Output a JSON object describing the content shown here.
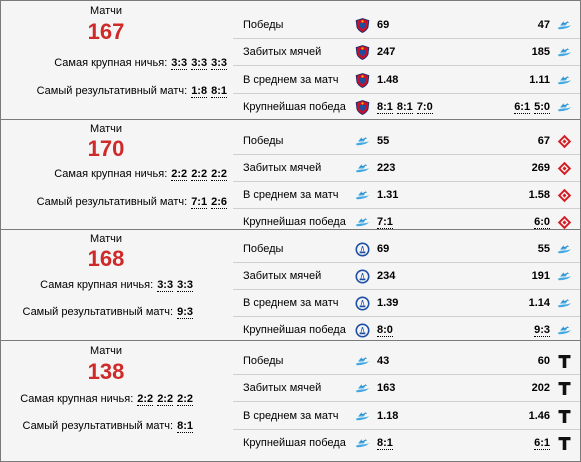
{
  "labels": {
    "matches": "Матчи",
    "biggest_draw": "Самая крупная ничья:",
    "most_productive": "Самый результативный матч:",
    "wins": "Победы",
    "goals": "Забитых мячей",
    "avg": "В среднем за матч",
    "biggest_win": "Крупнейшая победа"
  },
  "blocks": [
    {
      "matches": "167",
      "draws": [
        "3:3",
        "3:3",
        "3:3"
      ],
      "productive": [
        "1:8",
        "8:1"
      ],
      "team1_icon": "cska-icon",
      "team2_icon": "zenit-icon",
      "wins": [
        "69",
        "47"
      ],
      "goals": [
        "247",
        "185"
      ],
      "avg": [
        "1.48",
        "1.11"
      ],
      "biggest_win": [
        [
          "8:1",
          "8:1",
          "7:0"
        ],
        [
          "6:1",
          "5:0"
        ]
      ]
    },
    {
      "matches": "170",
      "draws": [
        "2:2",
        "2:2",
        "2:2"
      ],
      "productive": [
        "7:1",
        "2:6"
      ],
      "team1_icon": "zenit-icon",
      "team2_icon": "spartak-icon",
      "wins": [
        "55",
        "67"
      ],
      "goals": [
        "223",
        "269"
      ],
      "avg": [
        "1.31",
        "1.58"
      ],
      "biggest_win": [
        [
          "7:1"
        ],
        [
          "6:0"
        ]
      ]
    },
    {
      "matches": "168",
      "draws": [
        "3:3",
        "3:3"
      ],
      "productive": [
        "9:3"
      ],
      "team1_icon": "dynamo-icon",
      "team2_icon": "zenit-icon",
      "wins": [
        "69",
        "55"
      ],
      "goals": [
        "234",
        "191"
      ],
      "avg": [
        "1.39",
        "1.14"
      ],
      "biggest_win": [
        [
          "8:0"
        ],
        [
          "9:3"
        ]
      ]
    },
    {
      "matches": "138",
      "draws": [
        "2:2",
        "2:2",
        "2:2"
      ],
      "productive": [
        "8:1"
      ],
      "team1_icon": "zenit-icon",
      "team2_icon": "torpedo-icon",
      "wins": [
        "43",
        "60"
      ],
      "goals": [
        "163",
        "202"
      ],
      "avg": [
        "1.18",
        "1.46"
      ],
      "biggest_win": [
        [
          "8:1"
        ],
        [
          "6:1"
        ]
      ]
    }
  ]
}
